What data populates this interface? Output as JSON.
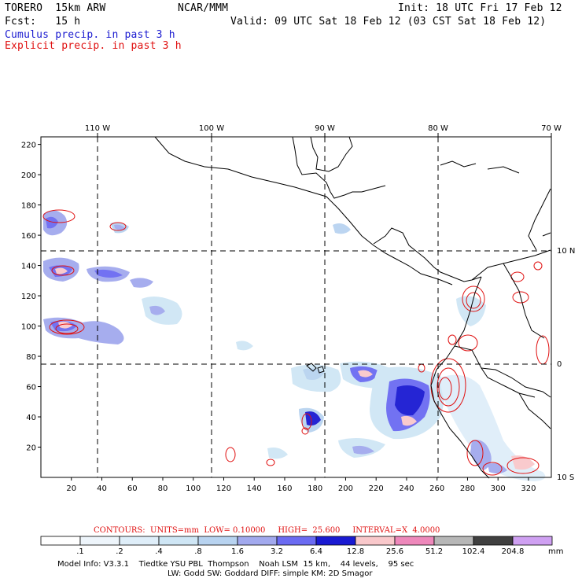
{
  "header": {
    "model": "TORERO  15km ARW",
    "org": "NCAR/MMM",
    "init": "Init: 18 UTC Fri 17 Feb 12",
    "fcst": "Fcst:   15 h",
    "valid": "Valid: 09 UTC Sat 18 Feb 12 (03 CST Sat 18 Feb 12)",
    "cumulus": "Cumulus precip. in past 3 h",
    "explicit": "Explicit precip. in past 3 h"
  },
  "axes": {
    "lon_labels": [
      "110 W",
      "100 W",
      "90 W",
      "80 W",
      "70 W"
    ],
    "lat_labels": [
      "10 N",
      "0",
      "10 S"
    ],
    "y_ticks": [
      "220",
      "200",
      "180",
      "160",
      "140",
      "120",
      "100",
      "80",
      "60",
      "40",
      "20"
    ],
    "x_ticks": [
      "20",
      "40",
      "60",
      "80",
      "100",
      "120",
      "140",
      "160",
      "180",
      "200",
      "220",
      "240",
      "260",
      "280",
      "300",
      "320"
    ],
    "x_range": [
      0,
      335
    ],
    "y_range": [
      0,
      225
    ]
  },
  "contours": {
    "label": "CONTOURS:",
    "units": "UNITS=mm",
    "low": "LOW= 0.10000",
    "high": "HIGH=  25.600",
    "interval": "INTERVAL=X  4.0000"
  },
  "colorbar": {
    "unit": "mm",
    "levels": [
      ".1",
      ".2",
      ".4",
      ".8",
      "1.6",
      "3.2",
      "6.4",
      "12.8",
      "25.6",
      "51.2",
      "102.4",
      "204.8"
    ],
    "colors": [
      "#ffffff",
      "#eef5fb",
      "#dfeef9",
      "#cfe6f5",
      "#b8d3f0",
      "#a2a9ee",
      "#6b6bf2",
      "#1a1ad2",
      "#f9c8cb",
      "#ee88bb",
      "#b7b7b7",
      "#404040",
      "#cfa0f2"
    ]
  },
  "footer": {
    "line1": "Model Info: V3.3.1    Tiedtke YSU PBL  Thompson    Noah LSM  15 km,    44 levels,    95 sec",
    "line2": "LW: Godd SW: Goddard DIFF: simple KM: 2D Smagor"
  }
}
